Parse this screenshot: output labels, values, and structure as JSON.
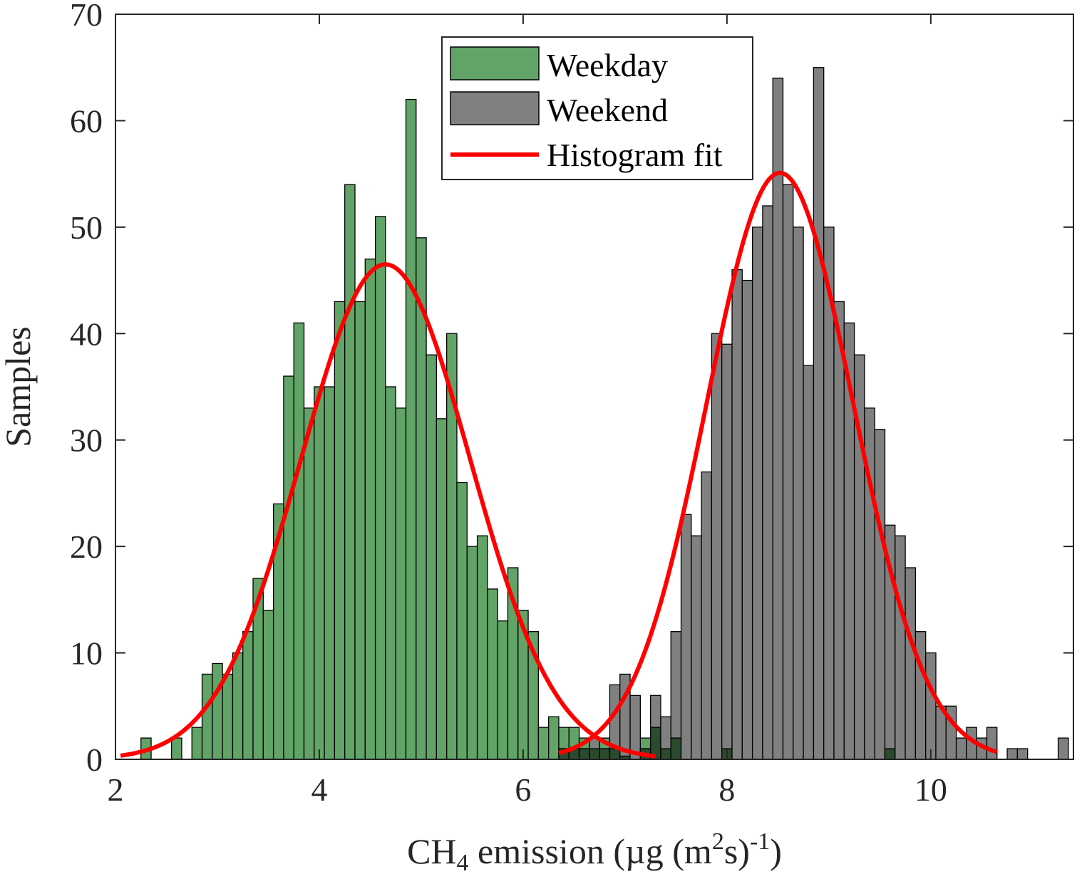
{
  "chart_data": {
    "type": "bar",
    "xlabel": {
      "prefix": "CH",
      "sub": "4",
      "middle": " emission (µg (m",
      "sup1": "2",
      "after": "s)",
      "sup2": "-1",
      "suffix": ")"
    },
    "ylabel": "Samples",
    "xlim": [
      2,
      11.4
    ],
    "ylim": [
      0,
      70
    ],
    "xticks": [
      "2",
      "4",
      "6",
      "8",
      "10"
    ],
    "yticks": [
      "0",
      "10",
      "20",
      "30",
      "40",
      "50",
      "60",
      "70"
    ],
    "legend_position": "top-center",
    "bin_width": 0.1,
    "series": [
      {
        "name": "Weekday",
        "color": "#62a367",
        "bins": [
          {
            "x": 2.3,
            "y": 2
          },
          {
            "x": 2.6,
            "y": 2
          },
          {
            "x": 2.8,
            "y": 3
          },
          {
            "x": 2.9,
            "y": 8
          },
          {
            "x": 3.0,
            "y": 9
          },
          {
            "x": 3.1,
            "y": 8
          },
          {
            "x": 3.2,
            "y": 10
          },
          {
            "x": 3.3,
            "y": 12
          },
          {
            "x": 3.4,
            "y": 17
          },
          {
            "x": 3.5,
            "y": 14
          },
          {
            "x": 3.6,
            "y": 24
          },
          {
            "x": 3.7,
            "y": 36
          },
          {
            "x": 3.8,
            "y": 41
          },
          {
            "x": 3.9,
            "y": 33
          },
          {
            "x": 4.0,
            "y": 35
          },
          {
            "x": 4.1,
            "y": 35
          },
          {
            "x": 4.2,
            "y": 43
          },
          {
            "x": 4.3,
            "y": 54
          },
          {
            "x": 4.4,
            "y": 43
          },
          {
            "x": 4.5,
            "y": 47
          },
          {
            "x": 4.6,
            "y": 51
          },
          {
            "x": 4.7,
            "y": 35
          },
          {
            "x": 4.8,
            "y": 33
          },
          {
            "x": 4.9,
            "y": 62
          },
          {
            "x": 5.0,
            "y": 49
          },
          {
            "x": 5.1,
            "y": 38
          },
          {
            "x": 5.2,
            "y": 32
          },
          {
            "x": 5.3,
            "y": 40
          },
          {
            "x": 5.4,
            "y": 26
          },
          {
            "x": 5.5,
            "y": 20
          },
          {
            "x": 5.6,
            "y": 21
          },
          {
            "x": 5.7,
            "y": 16
          },
          {
            "x": 5.8,
            "y": 13
          },
          {
            "x": 5.9,
            "y": 18
          },
          {
            "x": 6.0,
            "y": 14
          },
          {
            "x": 6.1,
            "y": 12
          },
          {
            "x": 6.2,
            "y": 3
          },
          {
            "x": 6.3,
            "y": 4
          },
          {
            "x": 6.4,
            "y": 3
          },
          {
            "x": 6.5,
            "y": 3
          },
          {
            "x": 6.6,
            "y": 2
          },
          {
            "x": 6.7,
            "y": 1
          },
          {
            "x": 6.8,
            "y": 2
          },
          {
            "x": 6.9,
            "y": 1
          },
          {
            "x": 7.0,
            "y": 0.3
          },
          {
            "x": 7.2,
            "y": 2
          },
          {
            "x": 7.3,
            "y": 3
          },
          {
            "x": 7.4,
            "y": 1
          },
          {
            "x": 7.5,
            "y": 2
          },
          {
            "x": 8.0,
            "y": 1
          },
          {
            "x": 9.6,
            "y": 1
          }
        ]
      },
      {
        "name": "Weekend",
        "color": "#808080",
        "bins": [
          {
            "x": 6.4,
            "y": 1
          },
          {
            "x": 6.5,
            "y": 1
          },
          {
            "x": 6.6,
            "y": 1
          },
          {
            "x": 6.7,
            "y": 2
          },
          {
            "x": 6.8,
            "y": 1
          },
          {
            "x": 6.9,
            "y": 7
          },
          {
            "x": 7.0,
            "y": 8
          },
          {
            "x": 7.1,
            "y": 6
          },
          {
            "x": 7.2,
            "y": 1
          },
          {
            "x": 7.3,
            "y": 6
          },
          {
            "x": 7.4,
            "y": 4
          },
          {
            "x": 7.5,
            "y": 12
          },
          {
            "x": 7.6,
            "y": 23
          },
          {
            "x": 7.7,
            "y": 21
          },
          {
            "x": 7.8,
            "y": 27
          },
          {
            "x": 7.9,
            "y": 40
          },
          {
            "x": 8.0,
            "y": 39
          },
          {
            "x": 8.1,
            "y": 46
          },
          {
            "x": 8.2,
            "y": 45
          },
          {
            "x": 8.3,
            "y": 50
          },
          {
            "x": 8.4,
            "y": 52
          },
          {
            "x": 8.5,
            "y": 64
          },
          {
            "x": 8.6,
            "y": 54
          },
          {
            "x": 8.7,
            "y": 50
          },
          {
            "x": 8.8,
            "y": 37
          },
          {
            "x": 8.9,
            "y": 65
          },
          {
            "x": 9.0,
            "y": 50
          },
          {
            "x": 9.1,
            "y": 43
          },
          {
            "x": 9.2,
            "y": 41
          },
          {
            "x": 9.3,
            "y": 38
          },
          {
            "x": 9.4,
            "y": 33
          },
          {
            "x": 9.5,
            "y": 31
          },
          {
            "x": 9.6,
            "y": 22
          },
          {
            "x": 9.7,
            "y": 21
          },
          {
            "x": 9.8,
            "y": 18
          },
          {
            "x": 9.9,
            "y": 12
          },
          {
            "x": 10.0,
            "y": 10
          },
          {
            "x": 10.1,
            "y": 5
          },
          {
            "x": 10.2,
            "y": 5
          },
          {
            "x": 10.3,
            "y": 2
          },
          {
            "x": 10.4,
            "y": 3
          },
          {
            "x": 10.5,
            "y": 2
          },
          {
            "x": 10.6,
            "y": 3
          },
          {
            "x": 10.8,
            "y": 1
          },
          {
            "x": 10.9,
            "y": 1
          },
          {
            "x": 11.3,
            "y": 2
          }
        ]
      }
    ],
    "fits": [
      {
        "name": "Histogram fit",
        "color": "#ff0000",
        "mean": 4.65,
        "sigma": 0.83,
        "peak": 46.5,
        "x_range": [
          2.05,
          7.3
        ]
      },
      {
        "name": "Histogram fit",
        "color": "#ff0000",
        "mean": 8.52,
        "sigma": 0.72,
        "peak": 55.1,
        "x_range": [
          6.35,
          10.65
        ]
      }
    ],
    "overlap_color": "#2c4a2e"
  }
}
